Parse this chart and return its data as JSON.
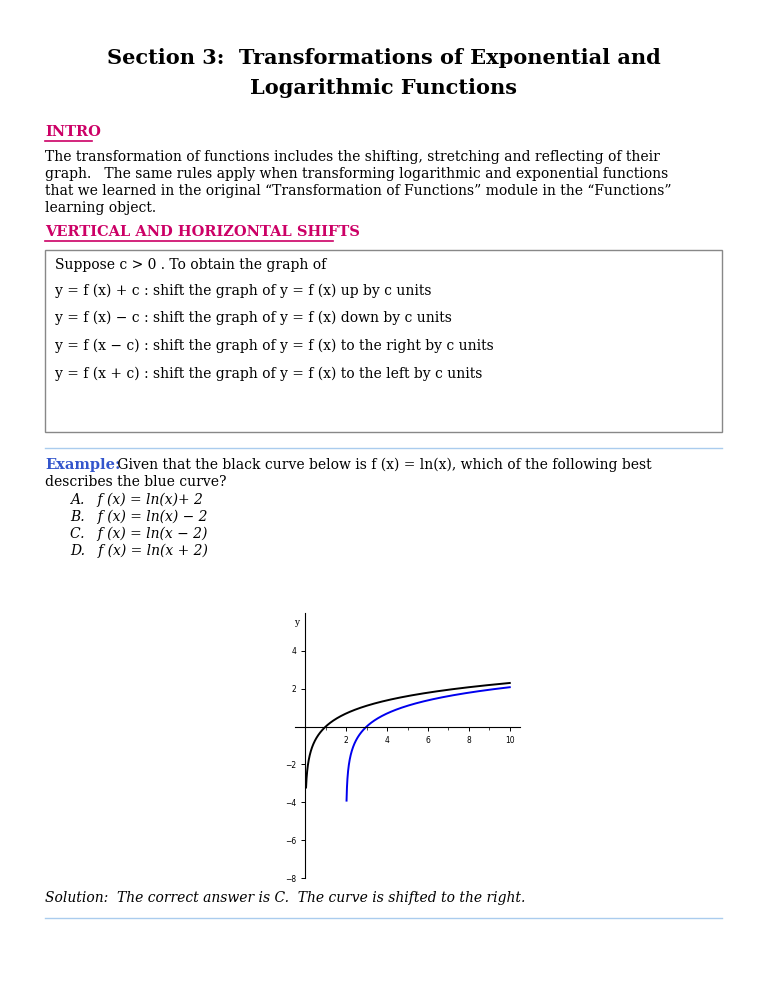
{
  "title_line1": "Section 3:  Transformations of Exponential and",
  "title_line2": "Logarithmic Functions",
  "intro_heading": "INTRO",
  "intro_text_lines": [
    "The transformation of functions includes the shifting, stretching and reflecting of their",
    "graph.   The same rules apply when transforming logarithmic and exponential functions",
    "that we learned in the original “Transformation of Functions” module in the “Functions”",
    "learning object."
  ],
  "section_heading": "VERTICAL AND HORIZONTAL SHIFTS",
  "box_line0": "Suppose c > 0 . To obtain the graph of",
  "box_line1": "y = f (x) + c : shift the graph of y = f (x) up by c units",
  "box_line2": "y = f (x) − c : shift the graph of y = f (x) down by c units",
  "box_line3": "y = f (x − c) : shift the graph of y = f (x) to the right by c units",
  "box_line4": "y = f (x + c) : shift the graph of y = f (x) to the left by c units",
  "example_label": "Example:",
  "example_rest": " Given that the black curve below is f (x) = ln(x), which of the following best",
  "example_line2": "describes the blue curve?",
  "choice_A": "A.   f (x) = ln(x)+ 2",
  "choice_B": "B.   f (x) = ln(x) − 2",
  "choice_C": "C.   f (x) = ln(x − 2)",
  "choice_D": "D.   f (x) = ln(x + 2)",
  "solution_text": "Solution:  The correct answer is C.  The curve is shifted to the right.",
  "heading_color": "#cc0066",
  "example_color": "#3355cc",
  "box_border_color": "#888888",
  "black_curve_color": "#000000",
  "blue_curve_color": "#0000ee",
  "separator_color": "#aaccee",
  "background_color": "#ffffff",
  "title_fontsize": 15,
  "body_fontsize": 10,
  "heading_fontsize": 10.5,
  "example_fontsize": 10.5
}
